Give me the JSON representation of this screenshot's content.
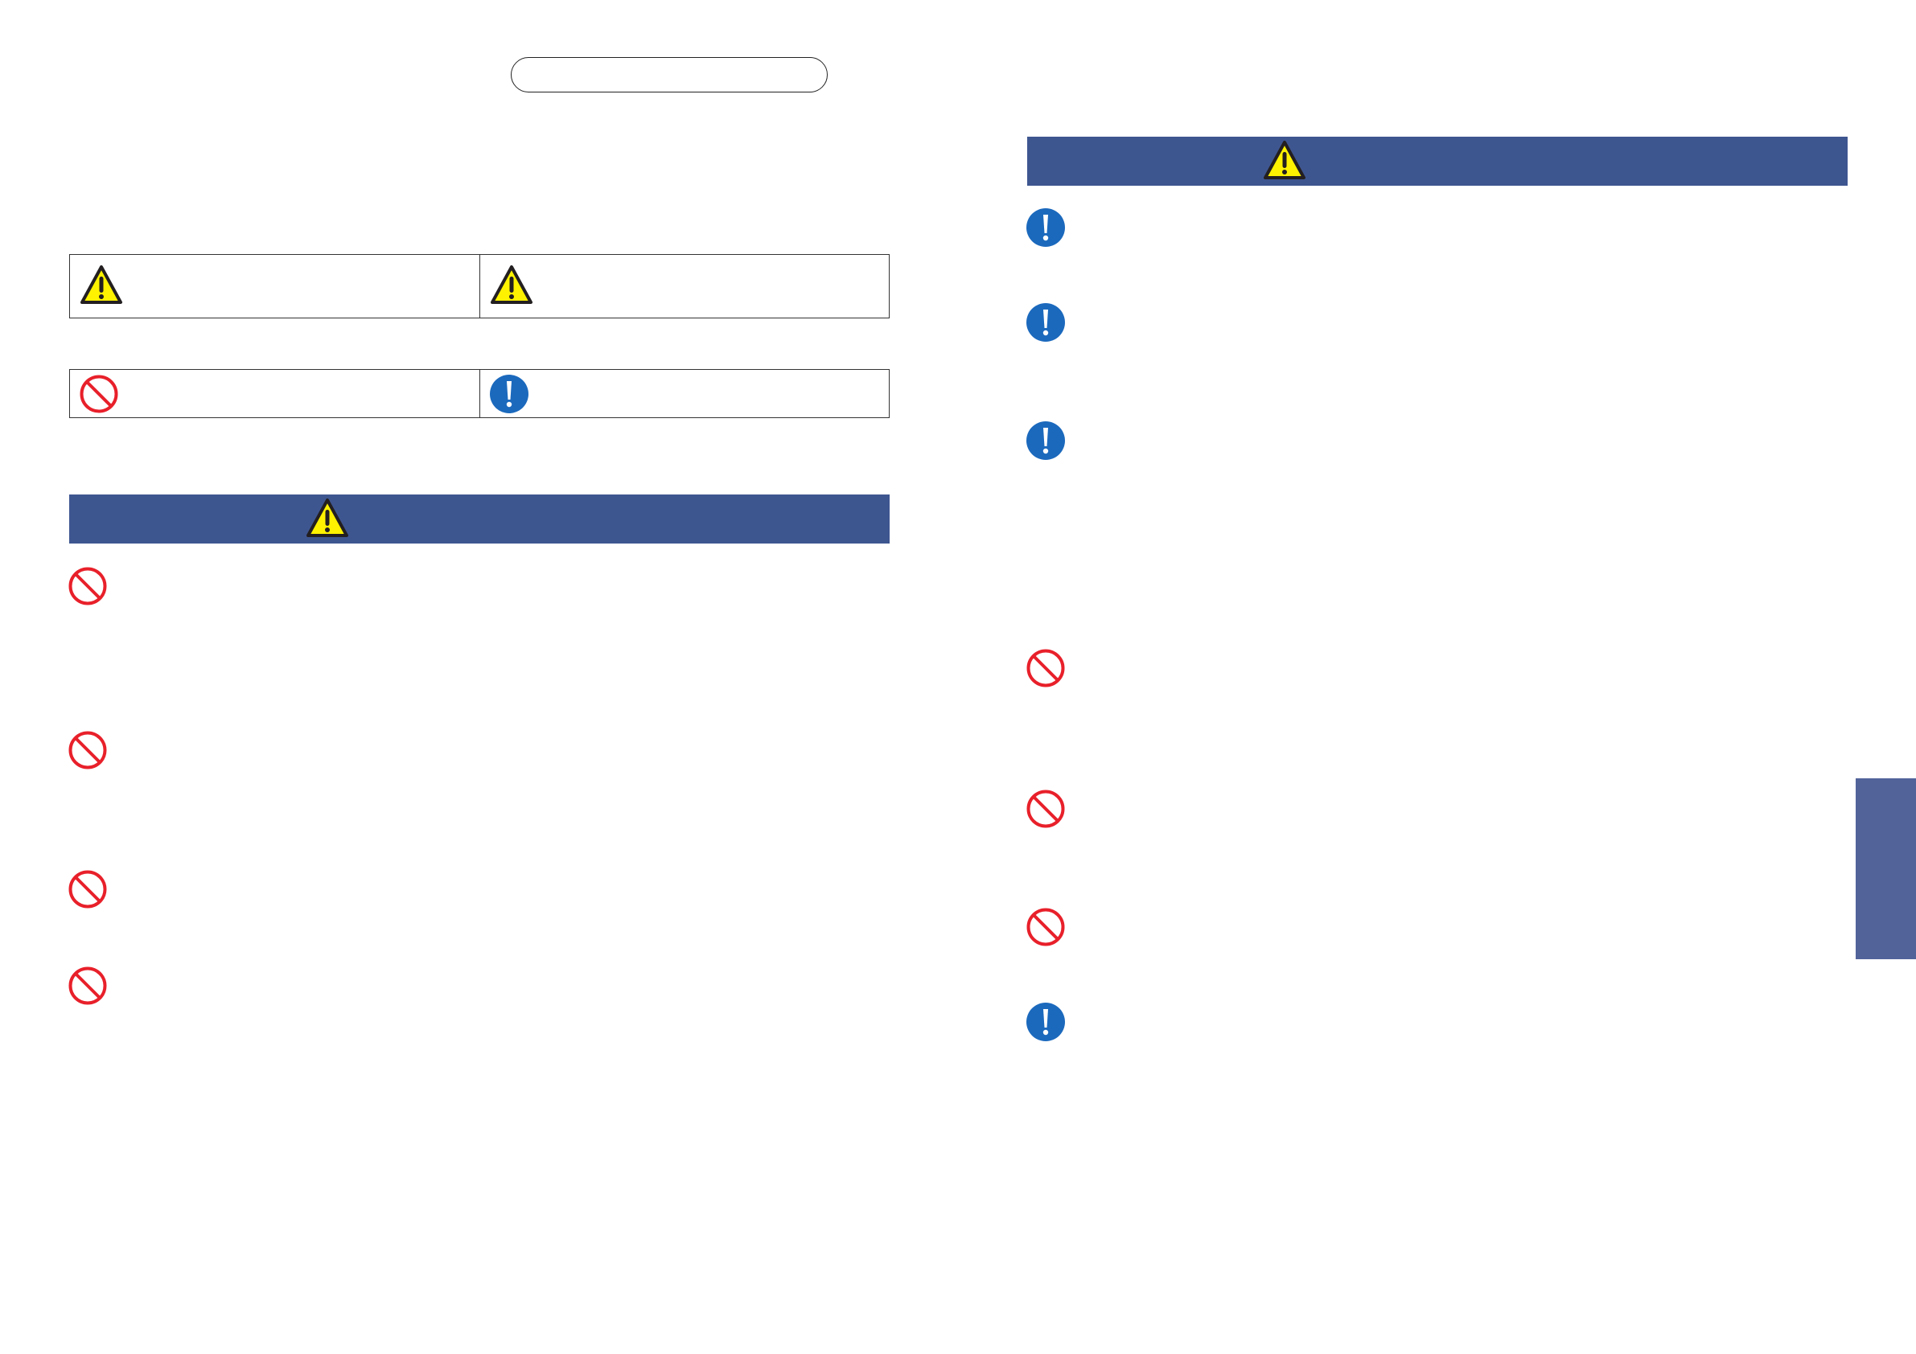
{
  "colors": {
    "banner": "#3e5690",
    "side_tab": "#52639a",
    "prohibit": "#e8202a",
    "mandatory": "#1b69bd",
    "warning_fill": "#fff200"
  },
  "icons": {
    "warning": "warning-triangle-icon",
    "prohibit": "prohibition-icon",
    "mandatory": "mandatory-exclamation-icon"
  },
  "left_items": [
    "prohibit",
    "prohibit",
    "prohibit",
    "prohibit"
  ],
  "right_items": [
    "mandatory",
    "mandatory",
    "mandatory",
    "prohibit",
    "prohibit",
    "prohibit",
    "mandatory"
  ]
}
